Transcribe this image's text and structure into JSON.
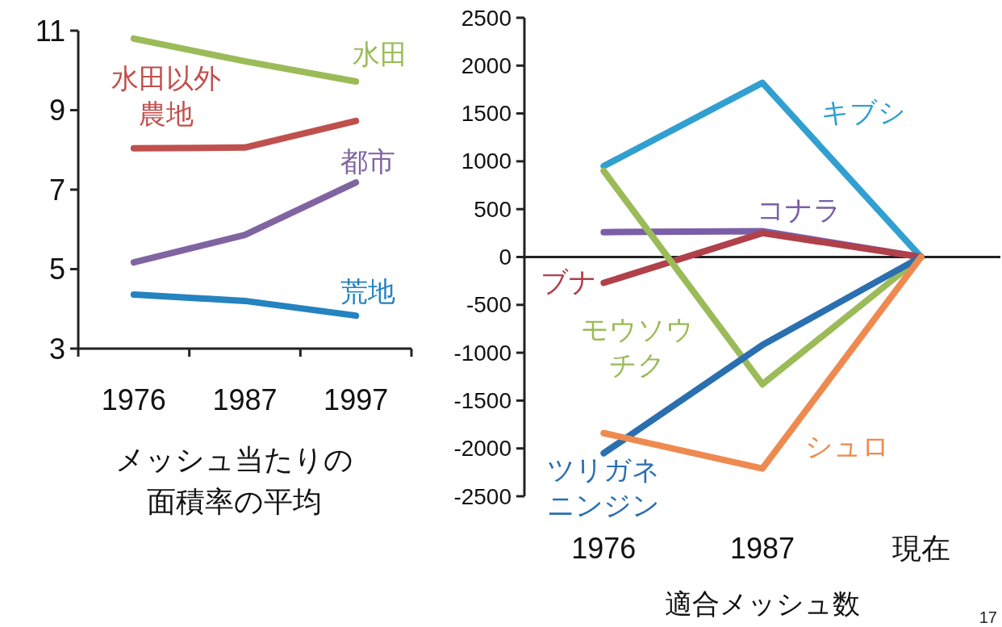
{
  "chart_data": [
    {
      "type": "line",
      "xlabel": "メッシュ当たりの面積率の平均",
      "categories": [
        "1976",
        "1987",
        "1997"
      ],
      "ylim": [
        3,
        11
      ],
      "yticks": [
        3,
        5,
        7,
        9,
        11
      ],
      "series": [
        {
          "name": "水田",
          "color": "#9bbb59",
          "values": [
            10.8,
            10.23,
            9.72
          ]
        },
        {
          "name": "水田以外農地",
          "color": "#c0504d",
          "values": [
            8.04,
            8.06,
            8.73
          ]
        },
        {
          "name": "都市",
          "color": "#8064a2",
          "values": [
            5.17,
            5.86,
            7.18
          ]
        },
        {
          "name": "荒地",
          "color": "#2583c0",
          "values": [
            4.36,
            4.2,
            3.83
          ]
        }
      ]
    },
    {
      "type": "line",
      "xlabel": "適合メッシュ数",
      "categories": [
        "1976",
        "1987",
        "現在"
      ],
      "ylim": [
        -2500,
        2500
      ],
      "yticks": [
        -2500,
        -2000,
        -1500,
        -1000,
        -500,
        0,
        500,
        1000,
        1500,
        2000,
        2500
      ],
      "annotations": [
        "17"
      ],
      "series": [
        {
          "name": "キブシ",
          "color": "#31a0d0",
          "values": [
            950,
            1820,
            0
          ]
        },
        {
          "name": "コナラ",
          "color": "#7b5ea7",
          "values": [
            260,
            270,
            0
          ]
        },
        {
          "name": "ブナ",
          "color": "#b0404a",
          "values": [
            -270,
            250,
            0
          ]
        },
        {
          "name": "モウソウチク",
          "color": "#9bbb59",
          "values": [
            900,
            -1330,
            0
          ]
        },
        {
          "name": "ツリガネニンジン",
          "color": "#2a6fb0",
          "values": [
            -2050,
            -920,
            0
          ]
        },
        {
          "name": "シュロ",
          "color": "#ee8a4f",
          "values": [
            -1840,
            -2210,
            0
          ]
        }
      ]
    }
  ]
}
